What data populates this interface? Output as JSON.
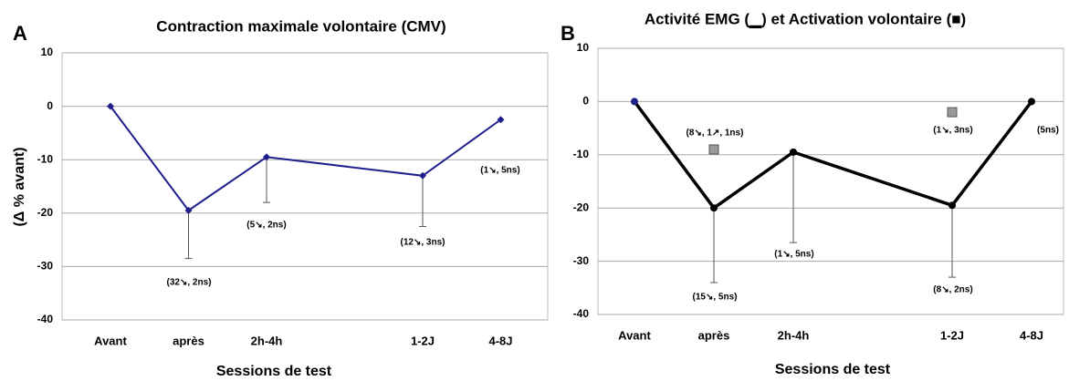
{
  "chart_data": [
    {
      "type": "line",
      "panel": "A",
      "title": "Contraction maximale volontaire (CMV)",
      "y_label": "(Δ % avant)",
      "x_label": "Sessions de test",
      "categories": [
        "Avant",
        "après",
        "2h-4h",
        "1-2J",
        "4-8J"
      ],
      "series": [
        {
          "name": "CMV",
          "color": "#1f1f8c",
          "values": [
            0,
            -19.5,
            -9.5,
            -13,
            -2.5
          ],
          "errors": [
            null,
            9,
            8.5,
            9.5,
            null
          ]
        }
      ],
      "annotations": [
        "(32↘, 2ns)",
        "(5↘, 2ns)",
        "(12↘, 3ns)",
        "(1↘, 5ns)"
      ],
      "ylim": [
        -40,
        10
      ],
      "yticks": [
        -40,
        -30,
        -20,
        -10,
        0,
        10
      ],
      "grid": true
    },
    {
      "type": "line",
      "panel": "B",
      "title": "Activité EMG (▁) et Activation volontaire (■)",
      "x_label": "Sessions de test",
      "categories": [
        "Avant",
        "après",
        "2h-4h",
        "1-2J",
        "4-8J"
      ],
      "series": [
        {
          "name": "Activité EMG",
          "color": "#000000",
          "values": [
            0,
            -20,
            -9.5,
            -19.5,
            0
          ],
          "errors": [
            null,
            14,
            17,
            13.5,
            null
          ]
        },
        {
          "name": "Activation volontaire",
          "color": "#999999",
          "marker": "square",
          "values": [
            null,
            -9,
            null,
            -2,
            null
          ]
        }
      ],
      "annotations": [
        "(8↘, 1↗, 1ns)",
        "(15↘, 5ns)",
        "(1↘, 5ns)",
        "(1↘, 3ns)",
        "(8↘, 2ns)",
        "(5ns)"
      ],
      "ylim": [
        -40,
        10
      ],
      "yticks": [
        -40,
        -30,
        -20,
        -10,
        0,
        10
      ],
      "grid": true
    }
  ]
}
